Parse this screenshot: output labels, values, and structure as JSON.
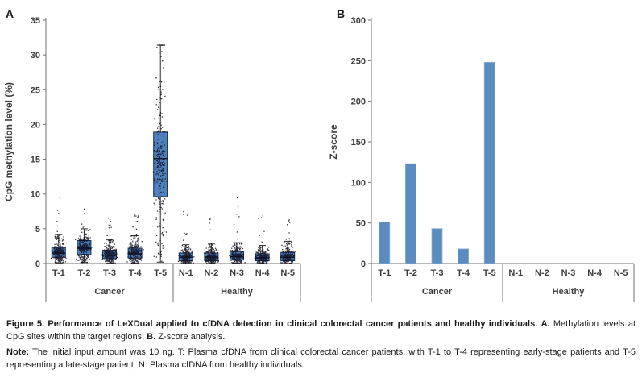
{
  "panels": {
    "a_label": "A",
    "b_label": "B"
  },
  "caption": {
    "title_bold": "Figure 5. Performance of LeXDual applied to cfDNA detection in clinical colorectal cancer patients and healthy individuals.",
    "seg_a_label": "A.",
    "seg_a_text": "Methylation levels at CpG sites within the target regions;",
    "seg_b_label": "B.",
    "seg_b_text": "Z-score analysis.",
    "note_label": "Note:",
    "note_text": "The initial input amount was 10 ng. T: Plasma cfDNA from clinical colorectal cancer patients, with T-1 to T-4 representing early-stage patients and T-5 representing a late-stage patient; N: Plasma cfDNA from healthy individuals."
  },
  "chart_data": [
    {
      "id": "panel_a",
      "type": "boxplot",
      "title": "",
      "ylabel": "CpG methylation level (%)",
      "xlabel": "",
      "ylim": [
        0,
        35
      ],
      "ytick_step": 5,
      "grid": false,
      "categories": [
        "T-1",
        "T-2",
        "T-3",
        "T-4",
        "T-5",
        "N-1",
        "N-2",
        "N-3",
        "N-4",
        "N-5"
      ],
      "groups": [
        {
          "label": "Cancer",
          "from": 0,
          "to": 4
        },
        {
          "label": "Healthy",
          "from": 5,
          "to": 9
        }
      ],
      "boxes": [
        {
          "category": "T-1",
          "whisker_low": 0.1,
          "q1": 0.9,
          "median": 1.5,
          "q3": 2.3,
          "whisker_high": 4.2,
          "scatter_max": 11.0,
          "n_points": 280
        },
        {
          "category": "T-2",
          "whisker_low": 0.15,
          "q1": 1.3,
          "median": 2.2,
          "q3": 3.3,
          "whisker_high": 5.0,
          "scatter_max": 8.2,
          "n_points": 300
        },
        {
          "category": "T-3",
          "whisker_low": 0.05,
          "q1": 0.7,
          "median": 1.2,
          "q3": 1.9,
          "whisker_high": 3.4,
          "scatter_max": 6.8,
          "n_points": 280
        },
        {
          "category": "T-4",
          "whisker_low": 0.05,
          "q1": 0.8,
          "median": 1.4,
          "q3": 2.2,
          "whisker_high": 4.0,
          "scatter_max": 7.2,
          "n_points": 280
        },
        {
          "category": "T-5",
          "whisker_low": 0.2,
          "q1": 9.6,
          "median": 15.1,
          "q3": 18.9,
          "whisker_high": 31.4,
          "scatter_max": 31.4,
          "n_points": 300
        },
        {
          "category": "N-1",
          "whisker_low": 0.02,
          "q1": 0.4,
          "median": 0.9,
          "q3": 1.5,
          "whisker_high": 2.7,
          "scatter_max": 7.7,
          "n_points": 240
        },
        {
          "category": "N-2",
          "whisker_low": 0.02,
          "q1": 0.4,
          "median": 0.9,
          "q3": 1.5,
          "whisker_high": 2.8,
          "scatter_max": 8.2,
          "n_points": 240
        },
        {
          "category": "N-3",
          "whisker_low": 0.02,
          "q1": 0.5,
          "median": 1.0,
          "q3": 1.7,
          "whisker_high": 3.0,
          "scatter_max": 10.5,
          "n_points": 260
        },
        {
          "category": "N-4",
          "whisker_low": 0.02,
          "q1": 0.4,
          "median": 0.8,
          "q3": 1.4,
          "whisker_high": 2.6,
          "scatter_max": 7.0,
          "n_points": 240
        },
        {
          "category": "N-5",
          "whisker_low": 0.02,
          "q1": 0.4,
          "median": 0.9,
          "q3": 1.6,
          "whisker_high": 3.2,
          "scatter_max": 6.3,
          "n_points": 240
        }
      ],
      "colors": {
        "box_fill": "#4f81bd",
        "box_edge": "#1b2a4a",
        "median": "#0c1626",
        "whisker": "#2b2b2b",
        "point": "#101020",
        "axis": "#707070",
        "text": "#3d3d3d"
      }
    },
    {
      "id": "panel_b",
      "type": "bar",
      "title": "",
      "ylabel": "Z-score",
      "xlabel": "",
      "ylim": [
        0,
        300
      ],
      "ytick_step": 50,
      "grid": false,
      "categories": [
        "T-1",
        "T-2",
        "T-3",
        "T-4",
        "T-5",
        "N-1",
        "N-2",
        "N-3",
        "N-4",
        "N-5"
      ],
      "values": [
        51,
        123,
        43,
        18,
        248,
        0,
        0,
        0,
        0,
        0
      ],
      "groups": [
        {
          "label": "Cancer",
          "from": 0,
          "to": 4
        },
        {
          "label": "Healthy",
          "from": 5,
          "to": 9
        }
      ],
      "colors": {
        "bar_fill": "#5b8cbf",
        "bar_edge": "#8fb0d1",
        "axis": "#707070",
        "text": "#3d3d3d"
      }
    }
  ]
}
